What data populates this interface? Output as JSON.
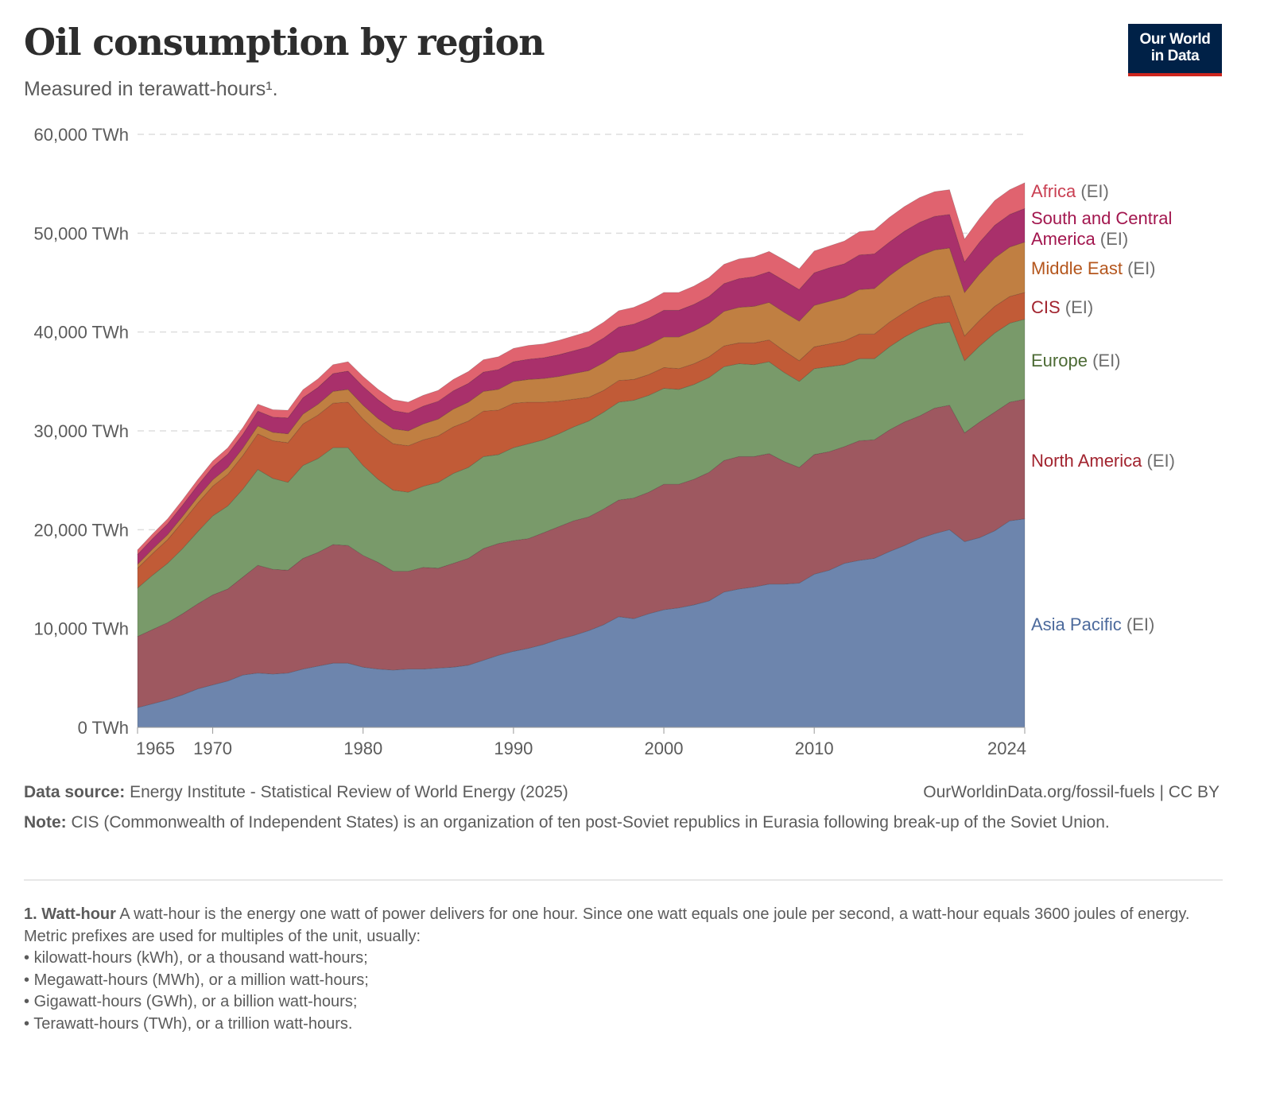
{
  "header": {
    "title": "Oil consumption by region",
    "subtitle": "Measured in terawatt-hours¹.",
    "logo_line1": "Our World",
    "logo_line2": "in Data"
  },
  "footer": {
    "source_label": "Data source:",
    "source_text": "Energy Institute - Statistical Review of World Energy (2025)",
    "url": "OurWorldinData.org/fossil-fuels | CC BY",
    "note_label": "Note:",
    "note_text": "CIS (Commonwealth of Independent States) is an organization of ten post-Soviet republics in Eurasia following break-up of the Soviet Union."
  },
  "footnote": {
    "label": "1. Watt-hour",
    "text": "A watt-hour is the energy one watt of power delivers for one hour. Since one watt equals one joule per second, a watt-hour equals 3600 joules of energy.",
    "intro": "Metric prefixes are used for multiples of the unit, usually:",
    "items": [
      "kilowatt-hours (kWh), or a thousand watt-hours;",
      "Megawatt-hours (MWh), or a million watt-hours;",
      "Gigawatt-hours (GWh), or a billion watt-hours;",
      "Terawatt-hours (TWh), or a trillion watt-hours."
    ]
  },
  "chart_data": {
    "type": "area",
    "stacked": true,
    "title": "Oil consumption by region",
    "subtitle": "Measured in terawatt-hours¹.",
    "xlabel": "",
    "ylabel": "",
    "unit": "TWh",
    "ylim": [
      0,
      60000
    ],
    "xlim": [
      1965,
      2024
    ],
    "grid": "horizontal-dashed",
    "legend": "right (inline labels at series end)",
    "yticks": [
      0,
      10000,
      20000,
      30000,
      40000,
      50000,
      60000
    ],
    "ytick_labels": [
      "0 TWh",
      "10,000 TWh",
      "20,000 TWh",
      "30,000 TWh",
      "40,000 TWh",
      "50,000 TWh",
      "60,000 TWh"
    ],
    "xticks": [
      1965,
      1970,
      1980,
      1990,
      2000,
      2010,
      2024
    ],
    "xtick_labels": [
      "1965",
      "1970",
      "1980",
      "1990",
      "2000",
      "2010",
      "2024"
    ],
    "x": [
      1965,
      1966,
      1967,
      1968,
      1969,
      1970,
      1971,
      1972,
      1973,
      1974,
      1975,
      1976,
      1977,
      1978,
      1979,
      1980,
      1981,
      1982,
      1983,
      1984,
      1985,
      1986,
      1987,
      1988,
      1989,
      1990,
      1991,
      1992,
      1993,
      1994,
      1995,
      1996,
      1997,
      1998,
      1999,
      2000,
      2001,
      2002,
      2003,
      2004,
      2005,
      2006,
      2007,
      2008,
      2009,
      2010,
      2011,
      2012,
      2013,
      2014,
      2015,
      2016,
      2017,
      2018,
      2019,
      2020,
      2021,
      2022,
      2023,
      2024
    ],
    "series": [
      {
        "name": "Asia Pacific",
        "label": "Asia Pacific",
        "suffix": " (EI)",
        "color": "#6d85ad",
        "label_color": "#4c6a9c",
        "values": [
          2000,
          2400,
          2800,
          3300,
          3900,
          4300,
          4700,
          5300,
          5500,
          5400,
          5500,
          5900,
          6200,
          6500,
          6500,
          6100,
          5900,
          5800,
          5900,
          5900,
          6000,
          6100,
          6300,
          6800,
          7300,
          7700,
          8000,
          8400,
          8900,
          9300,
          9800,
          10400,
          11200,
          11000,
          11500,
          11900,
          12100,
          12400,
          12800,
          13700,
          14000,
          14200,
          14500,
          14500,
          14600,
          15500,
          15900,
          16600,
          16900,
          17100,
          17800,
          18400,
          19100,
          19600,
          20000,
          18800,
          19200,
          19900,
          20900,
          21100
        ]
      },
      {
        "name": "North America",
        "label": "North America",
        "suffix": " (EI)",
        "color": "#9e5860",
        "label_color": "#a2242f",
        "values": [
          7200,
          7500,
          7800,
          8200,
          8600,
          9100,
          9300,
          9900,
          10900,
          10600,
          10400,
          11200,
          11500,
          12000,
          11900,
          11300,
          10800,
          10000,
          9900,
          10300,
          10100,
          10500,
          10800,
          11300,
          11300,
          11200,
          11100,
          11300,
          11400,
          11600,
          11500,
          11700,
          11800,
          12200,
          12300,
          12700,
          12500,
          12700,
          13000,
          13300,
          13400,
          13200,
          13200,
          12400,
          11700,
          12100,
          12000,
          11800,
          12100,
          12000,
          12300,
          12500,
          12400,
          12700,
          12600,
          11000,
          11700,
          12000,
          12000,
          12100
        ]
      },
      {
        "name": "Europe",
        "label": "Europe",
        "suffix": " (EI)",
        "color": "#799a6a",
        "label_color": "#4c6a34",
        "values": [
          4900,
          5500,
          6000,
          6600,
          7300,
          8000,
          8400,
          8900,
          9700,
          9200,
          8900,
          9400,
          9500,
          9800,
          9900,
          9100,
          8400,
          8200,
          8000,
          8200,
          8700,
          9100,
          9200,
          9300,
          9000,
          9400,
          9600,
          9400,
          9400,
          9500,
          9700,
          9800,
          9900,
          9900,
          9800,
          9700,
          9600,
          9600,
          9600,
          9500,
          9400,
          9300,
          9300,
          9000,
          8700,
          8700,
          8600,
          8300,
          8300,
          8200,
          8400,
          8600,
          8800,
          8500,
          8400,
          7300,
          7700,
          8000,
          8000,
          8100
        ]
      },
      {
        "name": "CIS",
        "label": "CIS",
        "suffix": " (EI)",
        "color": "#c15b37",
        "label_color": "#a2242f",
        "values": [
          2000,
          2200,
          2400,
          2700,
          2900,
          3000,
          3200,
          3400,
          3600,
          3800,
          4000,
          4200,
          4400,
          4500,
          4600,
          4700,
          4700,
          4700,
          4700,
          4700,
          4700,
          4700,
          4700,
          4600,
          4500,
          4500,
          4200,
          3800,
          3300,
          2800,
          2400,
          2200,
          2200,
          2100,
          2100,
          2100,
          2100,
          2100,
          2100,
          2100,
          2100,
          2200,
          2200,
          2200,
          2100,
          2200,
          2300,
          2400,
          2500,
          2500,
          2500,
          2500,
          2600,
          2700,
          2700,
          2500,
          2600,
          2700,
          2700,
          2700
        ]
      },
      {
        "name": "Middle East",
        "label": "Middle East",
        "suffix": " (EI)",
        "color": "#c07f42",
        "label_color": "#b4561d",
        "values": [
          400,
          450,
          500,
          550,
          600,
          650,
          700,
          750,
          800,
          850,
          900,
          1000,
          1100,
          1200,
          1300,
          1400,
          1450,
          1500,
          1500,
          1600,
          1700,
          1800,
          1900,
          2000,
          2100,
          2200,
          2300,
          2400,
          2500,
          2600,
          2700,
          2800,
          2800,
          2900,
          3000,
          3100,
          3200,
          3300,
          3400,
          3500,
          3600,
          3700,
          3800,
          3900,
          4000,
          4200,
          4300,
          4400,
          4500,
          4600,
          4700,
          4800,
          4800,
          4800,
          4800,
          4400,
          4700,
          4900,
          5000,
          5100
        ]
      },
      {
        "name": "South and Central America",
        "label": "South and Central America",
        "suffix": " (EI)",
        "color": "#a9306b",
        "label_color": "#a2164e",
        "values": [
          1000,
          1050,
          1100,
          1150,
          1200,
          1300,
          1350,
          1400,
          1500,
          1550,
          1600,
          1650,
          1700,
          1800,
          1850,
          1900,
          1900,
          1850,
          1800,
          1800,
          1800,
          1850,
          1900,
          1950,
          2000,
          2000,
          2050,
          2100,
          2200,
          2300,
          2400,
          2500,
          2600,
          2700,
          2700,
          2700,
          2700,
          2700,
          2700,
          2800,
          2900,
          3000,
          3100,
          3200,
          3200,
          3300,
          3400,
          3400,
          3500,
          3500,
          3400,
          3400,
          3400,
          3400,
          3400,
          3100,
          3200,
          3300,
          3300,
          3400
        ]
      },
      {
        "name": "Africa",
        "label": "Africa",
        "suffix": " (EI)",
        "color": "#e0636f",
        "label_color": "#c93f52",
        "values": [
          450,
          480,
          500,
          530,
          560,
          600,
          630,
          670,
          700,
          740,
          780,
          820,
          860,
          900,
          950,
          1000,
          1050,
          1100,
          1100,
          1100,
          1100,
          1150,
          1200,
          1250,
          1300,
          1350,
          1400,
          1400,
          1450,
          1500,
          1550,
          1600,
          1650,
          1700,
          1750,
          1800,
          1800,
          1850,
          1900,
          1950,
          2000,
          2000,
          2050,
          2100,
          2100,
          2200,
          2200,
          2300,
          2350,
          2400,
          2500,
          2500,
          2500,
          2500,
          2500,
          2300,
          2400,
          2500,
          2500,
          2600
        ]
      }
    ]
  }
}
